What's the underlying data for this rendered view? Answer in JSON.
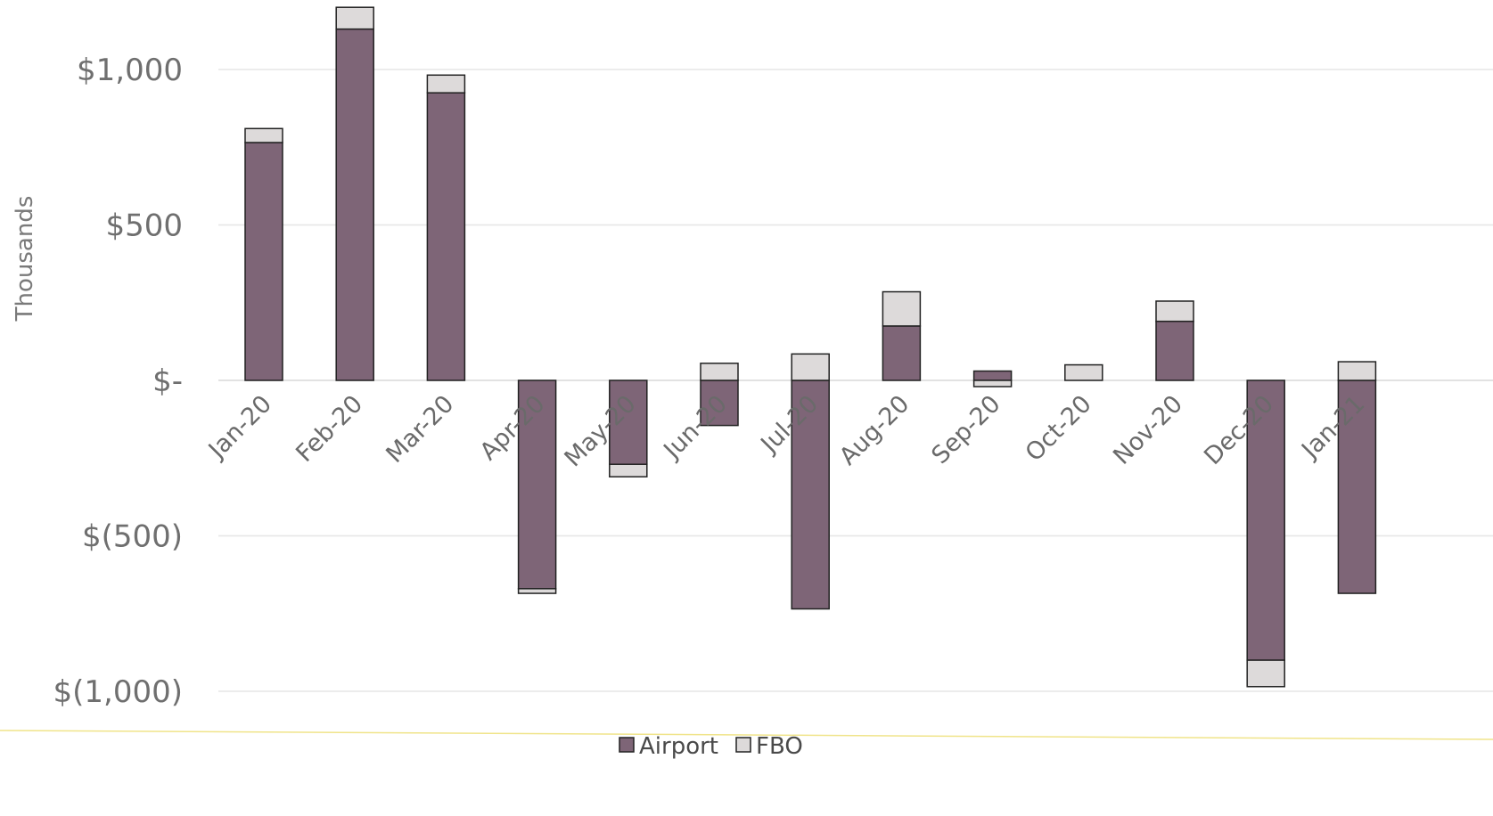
{
  "chart_data": {
    "type": "bar",
    "stacked": true,
    "ylabel": "Thousands",
    "ylim": [
      -1000,
      1000
    ],
    "yticks": [
      1000,
      500,
      0,
      -500,
      -1000
    ],
    "ytick_labels": [
      "$1,000",
      "$500",
      "$-",
      "$(500)",
      "$(1,000)"
    ],
    "grid": true,
    "legend_position": "bottom",
    "categories": [
      "Jan-20",
      "Feb-20",
      "Mar-20",
      "Apr-20",
      "May-20",
      "Jun-20",
      "Jul-20",
      "Aug-20",
      "Sep-20",
      "Oct-20",
      "Nov-20",
      "Dec-20",
      "Jan-21"
    ],
    "series": [
      {
        "name": "Airport",
        "color": "#7e6577",
        "values": [
          765,
          1130,
          925,
          -670,
          -270,
          -145,
          -735,
          175,
          30,
          0,
          190,
          -900,
          -685
        ]
      },
      {
        "name": "FBO",
        "color": "#dddada",
        "values": [
          45,
          70,
          57,
          -15,
          -40,
          55,
          85,
          110,
          -20,
          50,
          65,
          -85,
          60
        ]
      }
    ]
  }
}
